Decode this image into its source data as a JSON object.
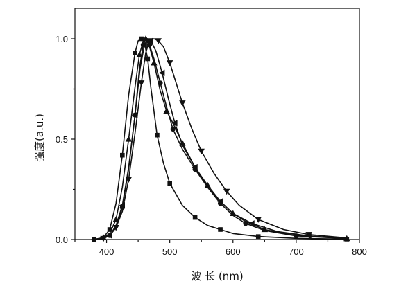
{
  "chart_data": {
    "type": "line",
    "xlabel": "波 长 (nm)",
    "ylabel": "强度(a.u.)",
    "xlim": [
      350,
      800
    ],
    "ylim": [
      0,
      1.0
    ],
    "x_ticks": [
      "400",
      "500",
      "600",
      "700",
      "800"
    ],
    "y_ticks": [
      "0.0",
      "0.5",
      "1.0"
    ],
    "grid": false,
    "series": [
      {
        "marker": "square",
        "points": [
          [
            380,
            0.0
          ],
          [
            395,
            0.01
          ],
          [
            405,
            0.05
          ],
          [
            415,
            0.18
          ],
          [
            425,
            0.42
          ],
          [
            435,
            0.72
          ],
          [
            445,
            0.93
          ],
          [
            450,
            0.99
          ],
          [
            455,
            1.0
          ],
          [
            460,
            0.98
          ],
          [
            465,
            0.9
          ],
          [
            470,
            0.76
          ],
          [
            480,
            0.52
          ],
          [
            490,
            0.38
          ],
          [
            500,
            0.28
          ],
          [
            520,
            0.17
          ],
          [
            540,
            0.11
          ],
          [
            560,
            0.07
          ],
          [
            580,
            0.05
          ],
          [
            600,
            0.03
          ],
          [
            640,
            0.015
          ],
          [
            700,
            0.006
          ],
          [
            780,
            0.002
          ]
        ]
      },
      {
        "marker": "triangle-up",
        "points": [
          [
            380,
            0.0
          ],
          [
            395,
            0.01
          ],
          [
            405,
            0.03
          ],
          [
            415,
            0.1
          ],
          [
            425,
            0.26
          ],
          [
            435,
            0.5
          ],
          [
            445,
            0.76
          ],
          [
            452,
            0.92
          ],
          [
            458,
            0.99
          ],
          [
            462,
            1.0
          ],
          [
            468,
            0.96
          ],
          [
            475,
            0.88
          ],
          [
            485,
            0.74
          ],
          [
            495,
            0.64
          ],
          [
            505,
            0.58
          ],
          [
            520,
            0.48
          ],
          [
            540,
            0.36
          ],
          [
            560,
            0.27
          ],
          [
            580,
            0.19
          ],
          [
            600,
            0.13
          ],
          [
            620,
            0.09
          ],
          [
            650,
            0.05
          ],
          [
            700,
            0.02
          ],
          [
            780,
            0.005
          ]
        ]
      },
      {
        "marker": "circle",
        "points": [
          [
            380,
            0.0
          ],
          [
            395,
            0.01
          ],
          [
            405,
            0.02
          ],
          [
            415,
            0.06
          ],
          [
            425,
            0.16
          ],
          [
            435,
            0.35
          ],
          [
            445,
            0.62
          ],
          [
            452,
            0.85
          ],
          [
            458,
            0.97
          ],
          [
            462,
            1.0
          ],
          [
            468,
            0.97
          ],
          [
            475,
            0.9
          ],
          [
            485,
            0.78
          ],
          [
            495,
            0.66
          ],
          [
            505,
            0.55
          ],
          [
            520,
            0.45
          ],
          [
            540,
            0.35
          ],
          [
            560,
            0.26
          ],
          [
            580,
            0.18
          ],
          [
            600,
            0.12
          ],
          [
            620,
            0.08
          ],
          [
            650,
            0.045
          ],
          [
            700,
            0.018
          ],
          [
            780,
            0.005
          ]
        ]
      },
      {
        "marker": "triangle-down",
        "points": [
          [
            380,
            0.0
          ],
          [
            395,
            0.005
          ],
          [
            405,
            0.02
          ],
          [
            415,
            0.06
          ],
          [
            425,
            0.14
          ],
          [
            435,
            0.3
          ],
          [
            445,
            0.53
          ],
          [
            455,
            0.78
          ],
          [
            462,
            0.93
          ],
          [
            468,
            0.99
          ],
          [
            475,
            1.0
          ],
          [
            482,
            0.99
          ],
          [
            490,
            0.96
          ],
          [
            500,
            0.88
          ],
          [
            510,
            0.78
          ],
          [
            520,
            0.68
          ],
          [
            535,
            0.55
          ],
          [
            550,
            0.44
          ],
          [
            570,
            0.33
          ],
          [
            590,
            0.24
          ],
          [
            610,
            0.17
          ],
          [
            640,
            0.1
          ],
          [
            680,
            0.05
          ],
          [
            720,
            0.025
          ],
          [
            780,
            0.008
          ]
        ]
      },
      {
        "marker": "triangle-left",
        "points": [
          [
            380,
            0.0
          ],
          [
            395,
            0.005
          ],
          [
            405,
            0.02
          ],
          [
            415,
            0.07
          ],
          [
            425,
            0.17
          ],
          [
            435,
            0.36
          ],
          [
            445,
            0.62
          ],
          [
            453,
            0.85
          ],
          [
            460,
            0.97
          ],
          [
            465,
            1.0
          ],
          [
            470,
            0.99
          ],
          [
            478,
            0.94
          ],
          [
            488,
            0.83
          ],
          [
            498,
            0.7
          ],
          [
            508,
            0.58
          ],
          [
            520,
            0.47
          ],
          [
            540,
            0.36
          ],
          [
            560,
            0.26
          ],
          [
            580,
            0.19
          ],
          [
            600,
            0.13
          ],
          [
            630,
            0.08
          ],
          [
            670,
            0.04
          ],
          [
            720,
            0.018
          ],
          [
            780,
            0.006
          ]
        ]
      }
    ]
  }
}
